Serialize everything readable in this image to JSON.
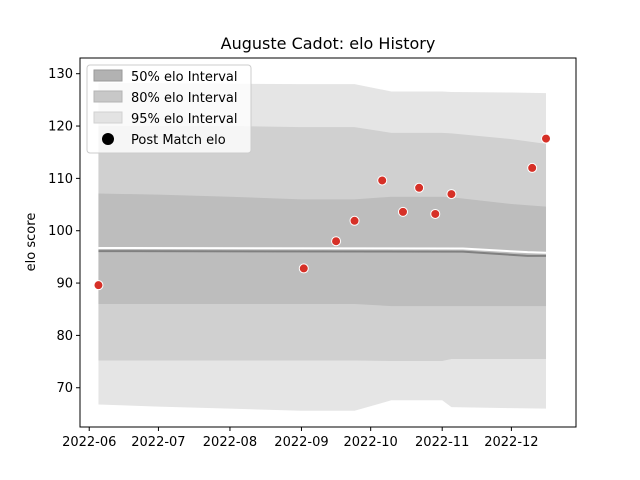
{
  "chart_data": {
    "type": "line",
    "title": "Auguste Cadot: elo History",
    "xlabel": "",
    "ylabel": "elo score",
    "xlim": [
      "2022-05-28",
      "2022-12-29"
    ],
    "ylim": [
      62.5,
      133
    ],
    "x_ticks": [
      "2022-06",
      "2022-07",
      "2022-08",
      "2022-09",
      "2022-10",
      "2022-11",
      "2022-12"
    ],
    "y_ticks": [
      70,
      80,
      90,
      100,
      110,
      120,
      130
    ],
    "grid": false,
    "legend_position": "upper-left",
    "legend": [
      "50% elo Interval",
      "80% elo Interval",
      "95% elo Interval",
      "Post Match elo"
    ],
    "band_x": [
      "2022-06-05",
      "2022-07-01",
      "2022-08-01",
      "2022-09-01",
      "2022-09-24",
      "2022-10-10",
      "2022-11-01",
      "2022-11-05",
      "2022-12-01",
      "2022-12-16"
    ],
    "bands": [
      {
        "name": "95% elo Interval",
        "color": "#e5e5e5",
        "lower": [
          66.8,
          66.4,
          66.0,
          65.6,
          65.6,
          67.6,
          67.6,
          66.3,
          66.1,
          66.0
        ],
        "upper": [
          128.2,
          128.2,
          128.1,
          128.0,
          128.0,
          126.6,
          126.6,
          126.5,
          126.4,
          126.3
        ]
      },
      {
        "name": "80% elo Interval",
        "color": "#d0d0d0",
        "lower": [
          75.2,
          75.2,
          75.2,
          75.2,
          75.2,
          75.1,
          75.1,
          75.5,
          75.5,
          75.5
        ],
        "upper": [
          120.0,
          120.0,
          120.0,
          119.8,
          119.8,
          118.7,
          118.7,
          118.6,
          117.5,
          116.6
        ]
      },
      {
        "name": "50% elo Interval",
        "color": "#bdbdbd",
        "lower": [
          86.0,
          86.0,
          86.0,
          86.0,
          86.0,
          85.6,
          85.6,
          85.6,
          85.6,
          85.6
        ],
        "upper": [
          107.1,
          106.9,
          106.5,
          106.0,
          106.0,
          106.5,
          106.5,
          106.4,
          105.1,
          104.6
        ]
      }
    ],
    "series": [
      {
        "name": "mean",
        "color": "#ffffff",
        "x": [
          "2022-06-05",
          "2022-11-10",
          "2022-12-08",
          "2022-12-16"
        ],
        "values": [
          96.7,
          96.6,
          95.9,
          95.8
        ]
      },
      {
        "name": "median",
        "color": "#808080",
        "x": [
          "2022-06-05",
          "2022-11-10",
          "2022-12-08",
          "2022-12-16"
        ],
        "values": [
          96.1,
          96.0,
          95.2,
          95.2
        ]
      }
    ],
    "points": {
      "name": "Post Match elo",
      "color": "#d63027",
      "x": [
        "2022-06-05",
        "2022-09-02",
        "2022-09-16",
        "2022-09-24",
        "2022-10-06",
        "2022-10-15",
        "2022-10-22",
        "2022-10-29",
        "2022-11-05",
        "2022-12-10",
        "2022-12-16"
      ],
      "values": [
        89.6,
        92.8,
        98.0,
        101.9,
        109.6,
        103.6,
        108.2,
        103.2,
        107.0,
        112.0,
        117.6
      ]
    }
  }
}
